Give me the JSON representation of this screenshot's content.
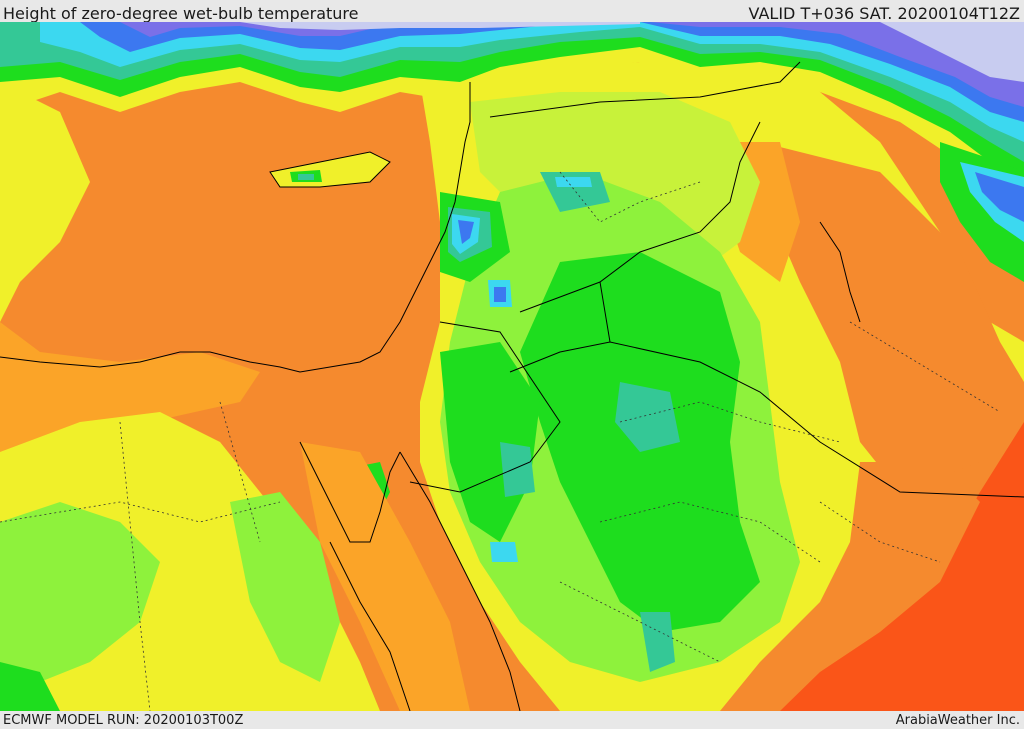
{
  "header": {
    "title": "Height of zero-degree wet-bulb temperature",
    "valid": "VALID T+036 SAT. 20200104T12Z"
  },
  "footer": {
    "model_run": "ECMWF MODEL RUN: 20200103T00Z",
    "credit": "ArabiaWeather Inc."
  },
  "map": {
    "colors": {
      "dark_orange": "#f58a2e",
      "orange": "#fba428",
      "orange_red": "#fa5518",
      "yellow": "#f0f02a",
      "yellow_green": "#c8f23a",
      "light_green": "#8ef23c",
      "green": "#1edd1e",
      "teal": "#34c896",
      "cyan": "#3cd8f0",
      "blue": "#3c78f0",
      "purple": "#7a70e8",
      "lavender": "#c8ccf0",
      "border": "#000000"
    }
  }
}
